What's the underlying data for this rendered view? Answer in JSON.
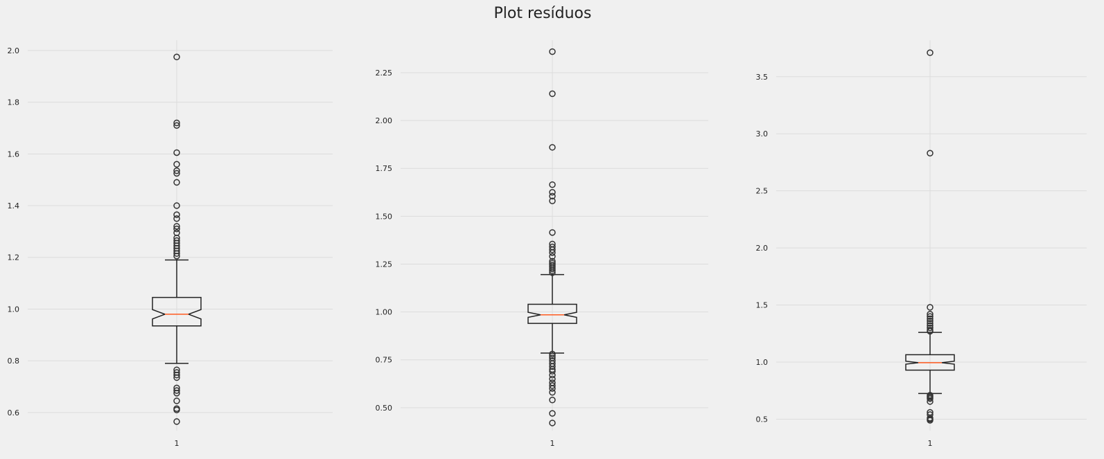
{
  "figure": {
    "title": "Plot resíduos"
  },
  "chart_data": [
    {
      "type": "box",
      "notched": true,
      "grid": true,
      "xticklabels": [
        "1"
      ],
      "ylim": [
        0.53,
        2.04
      ],
      "yticks": [
        0.6,
        0.8,
        1.0,
        1.2,
        1.4,
        1.6,
        1.8,
        2.0
      ],
      "yticklabels": [
        "0.6",
        "0.8",
        "1.0",
        "1.2",
        "1.4",
        "1.6",
        "1.8",
        "2.0"
      ],
      "stats": {
        "whislo": 0.79,
        "q1": 0.935,
        "median": 0.98,
        "q3": 1.045,
        "whishi": 1.19,
        "notch_lo": 0.962,
        "notch_hi": 0.998
      },
      "fliers": [
        1.975,
        1.72,
        1.71,
        1.605,
        1.56,
        1.535,
        1.525,
        1.49,
        1.4,
        1.365,
        1.35,
        1.32,
        1.31,
        1.295,
        1.275,
        1.265,
        1.255,
        1.245,
        1.235,
        1.225,
        1.215,
        1.205,
        0.765,
        0.755,
        0.745,
        0.735,
        0.695,
        0.685,
        0.675,
        0.645,
        0.615,
        0.61,
        0.565
      ]
    },
    {
      "type": "box",
      "notched": true,
      "grid": true,
      "xticklabels": [
        "1"
      ],
      "ylim": [
        0.38,
        2.42
      ],
      "yticks": [
        0.5,
        0.75,
        1.0,
        1.25,
        1.5,
        1.75,
        2.0,
        2.25
      ],
      "yticklabels": [
        "0.50",
        "0.75",
        "1.00",
        "1.25",
        "1.50",
        "1.75",
        "2.00",
        "2.25"
      ],
      "stats": {
        "whislo": 0.785,
        "q1": 0.94,
        "median": 0.985,
        "q3": 1.04,
        "whishi": 1.195,
        "notch_lo": 0.972,
        "notch_hi": 0.998
      },
      "fliers": [
        2.36,
        2.14,
        1.86,
        1.665,
        1.625,
        1.605,
        1.58,
        1.415,
        1.355,
        1.34,
        1.325,
        1.31,
        1.29,
        1.265,
        1.255,
        1.245,
        1.235,
        1.225,
        1.215,
        1.205,
        0.78,
        0.77,
        0.76,
        0.745,
        0.73,
        0.715,
        0.7,
        0.69,
        0.67,
        0.65,
        0.63,
        0.615,
        0.6,
        0.58,
        0.54,
        0.47,
        0.42
      ]
    },
    {
      "type": "box",
      "notched": true,
      "grid": true,
      "xticklabels": [
        "1"
      ],
      "ylim": [
        0.4,
        3.82
      ],
      "yticks": [
        0.5,
        1.0,
        1.5,
        2.0,
        2.5,
        3.0,
        3.5
      ],
      "yticklabels": [
        "0.5",
        "1.0",
        "1.5",
        "2.0",
        "2.5",
        "3.0",
        "3.5"
      ],
      "stats": {
        "whislo": 0.725,
        "q1": 0.93,
        "median": 0.995,
        "q3": 1.065,
        "whishi": 1.26,
        "notch_lo": 0.982,
        "notch_hi": 1.008
      },
      "fliers": [
        3.71,
        2.83,
        1.48,
        1.42,
        1.4,
        1.38,
        1.36,
        1.34,
        1.32,
        1.3,
        1.28,
        1.27,
        0.71,
        0.7,
        0.69,
        0.68,
        0.655,
        0.56,
        0.54,
        0.51,
        0.5,
        0.49
      ]
    }
  ]
}
